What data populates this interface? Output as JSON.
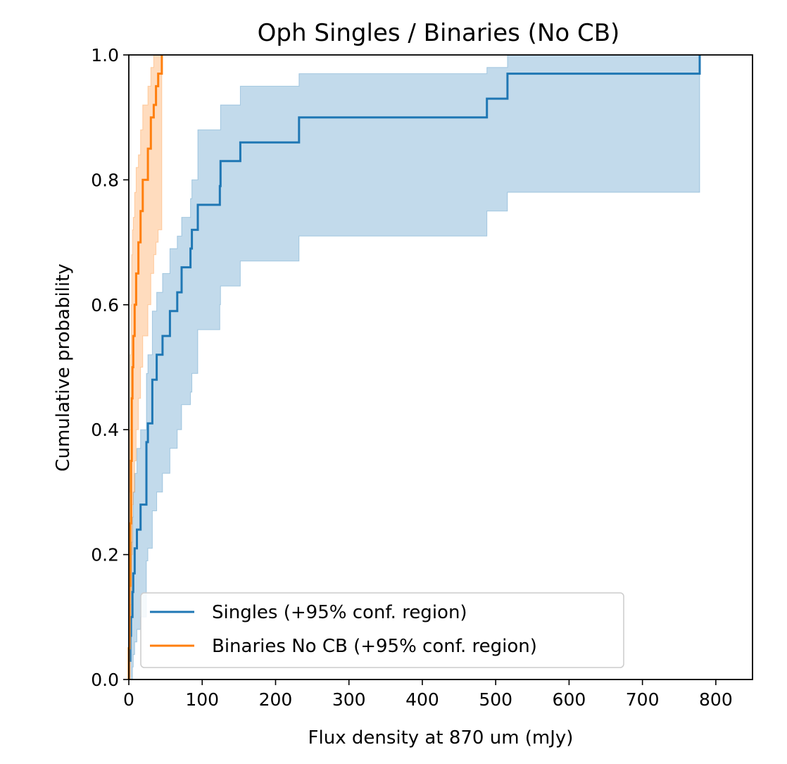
{
  "chart_data": {
    "type": "line",
    "title": "Oph Singles / Binaries (No CB)",
    "xlabel": "Flux density at 870 um (mJy)",
    "ylabel": "Cumulative probability",
    "xlim": [
      0,
      850
    ],
    "ylim": [
      0,
      1.0
    ],
    "xticks": [
      0,
      100,
      200,
      300,
      400,
      500,
      600,
      700,
      800
    ],
    "yticks": [
      "0.0",
      "0.2",
      "0.4",
      "0.6",
      "0.8",
      "1.0"
    ],
    "grid": false,
    "legend_position": "lower-left",
    "series": [
      {
        "name": "Singles (+95% conf. region)",
        "color": "#1f77b4",
        "step_x": [
          0,
          2,
          3,
          5,
          6,
          8,
          11,
          16,
          24,
          26,
          32,
          38,
          46,
          56,
          66,
          72,
          84,
          86,
          94,
          124,
          125,
          152,
          232,
          488,
          516,
          778
        ],
        "step_y": [
          0.03,
          0.07,
          0.1,
          0.14,
          0.17,
          0.21,
          0.24,
          0.28,
          0.38,
          0.41,
          0.48,
          0.52,
          0.55,
          0.59,
          0.62,
          0.66,
          0.69,
          0.72,
          0.76,
          0.79,
          0.83,
          0.86,
          0.9,
          0.93,
          0.97,
          1.0
        ],
        "band_upper": [
          0.13,
          0.18,
          0.22,
          0.26,
          0.3,
          0.33,
          0.37,
          0.4,
          0.49,
          0.52,
          0.59,
          0.62,
          0.65,
          0.69,
          0.71,
          0.74,
          0.77,
          0.8,
          0.88,
          0.88,
          0.92,
          0.95,
          0.97,
          0.98,
          1.0,
          1.0
        ],
        "band_lower": [
          0.0,
          0.0,
          0.0,
          0.02,
          0.04,
          0.06,
          0.08,
          0.1,
          0.19,
          0.21,
          0.27,
          0.3,
          0.33,
          0.37,
          0.4,
          0.44,
          0.46,
          0.49,
          0.56,
          0.6,
          0.63,
          0.67,
          0.71,
          0.75,
          0.78,
          0.78
        ]
      },
      {
        "name": "Binaries No CB (+95% conf. region)",
        "color": "#ff7f0e",
        "step_x": [
          0,
          1,
          2,
          3,
          4,
          5,
          6,
          8,
          10,
          13,
          16,
          19,
          26,
          30,
          34,
          37,
          40,
          45
        ],
        "step_y": [
          0.05,
          0.15,
          0.25,
          0.35,
          0.45,
          0.5,
          0.55,
          0.6,
          0.65,
          0.7,
          0.75,
          0.8,
          0.85,
          0.9,
          0.92,
          0.95,
          0.97,
          1.0
        ],
        "band_upper": [
          0.3,
          0.4,
          0.52,
          0.6,
          0.68,
          0.72,
          0.74,
          0.78,
          0.82,
          0.84,
          0.88,
          0.92,
          0.95,
          0.98,
          1.0,
          1.0,
          1.0,
          1.0
        ],
        "band_lower": [
          0.0,
          0.0,
          0.05,
          0.12,
          0.2,
          0.28,
          0.3,
          0.35,
          0.4,
          0.45,
          0.5,
          0.55,
          0.6,
          0.65,
          0.68,
          0.7,
          0.72,
          0.72
        ]
      }
    ]
  }
}
